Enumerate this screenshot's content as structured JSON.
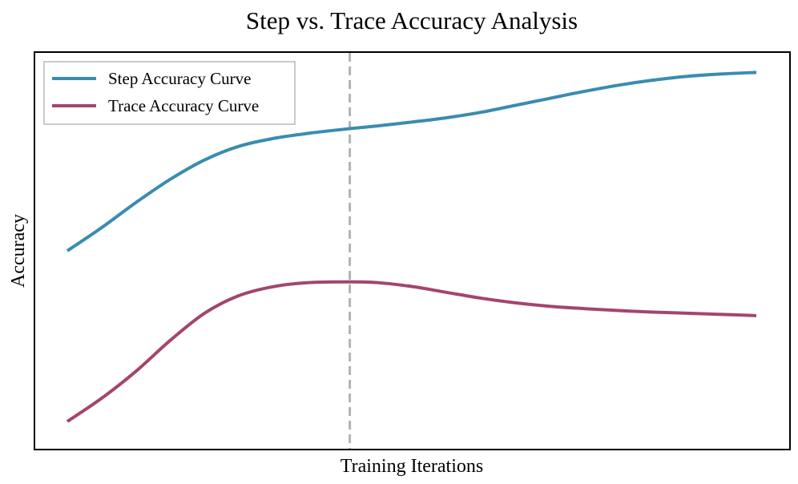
{
  "chart_data": {
    "type": "line",
    "title": "Step vs. Trace Accuracy Analysis",
    "xlabel": "Training Iterations",
    "ylabel": "Accuracy",
    "xlim": [
      0,
      1
    ],
    "ylim": [
      0,
      1
    ],
    "xticks": [],
    "yticks": [],
    "grid": false,
    "legend_position": "upper-left",
    "vertical_marker": {
      "x": 0.41,
      "style": "dashed",
      "color": "#b3b3b3"
    },
    "series": [
      {
        "name": "Step Accuracy Curve",
        "color": "#3a8cb0",
        "x": [
          0.0,
          0.05,
          0.1,
          0.15,
          0.2,
          0.25,
          0.3,
          0.35,
          0.41,
          0.45,
          0.5,
          0.55,
          0.6,
          0.65,
          0.7,
          0.75,
          0.8,
          0.85,
          0.9,
          0.95,
          1.0
        ],
        "y": [
          0.5,
          0.56,
          0.625,
          0.685,
          0.735,
          0.77,
          0.79,
          0.803,
          0.815,
          0.822,
          0.832,
          0.843,
          0.857,
          0.875,
          0.893,
          0.911,
          0.927,
          0.94,
          0.95,
          0.956,
          0.96
        ]
      },
      {
        "name": "Trace Accuracy Curve",
        "color": "#a3456f",
        "x": [
          0.0,
          0.05,
          0.1,
          0.15,
          0.2,
          0.25,
          0.3,
          0.35,
          0.41,
          0.45,
          0.5,
          0.55,
          0.6,
          0.65,
          0.7,
          0.75,
          0.8,
          0.85,
          0.9,
          0.95,
          1.0
        ],
        "y": [
          0.06,
          0.12,
          0.19,
          0.27,
          0.34,
          0.385,
          0.408,
          0.418,
          0.42,
          0.418,
          0.408,
          0.393,
          0.378,
          0.366,
          0.357,
          0.351,
          0.346,
          0.342,
          0.339,
          0.336,
          0.333
        ]
      }
    ]
  }
}
